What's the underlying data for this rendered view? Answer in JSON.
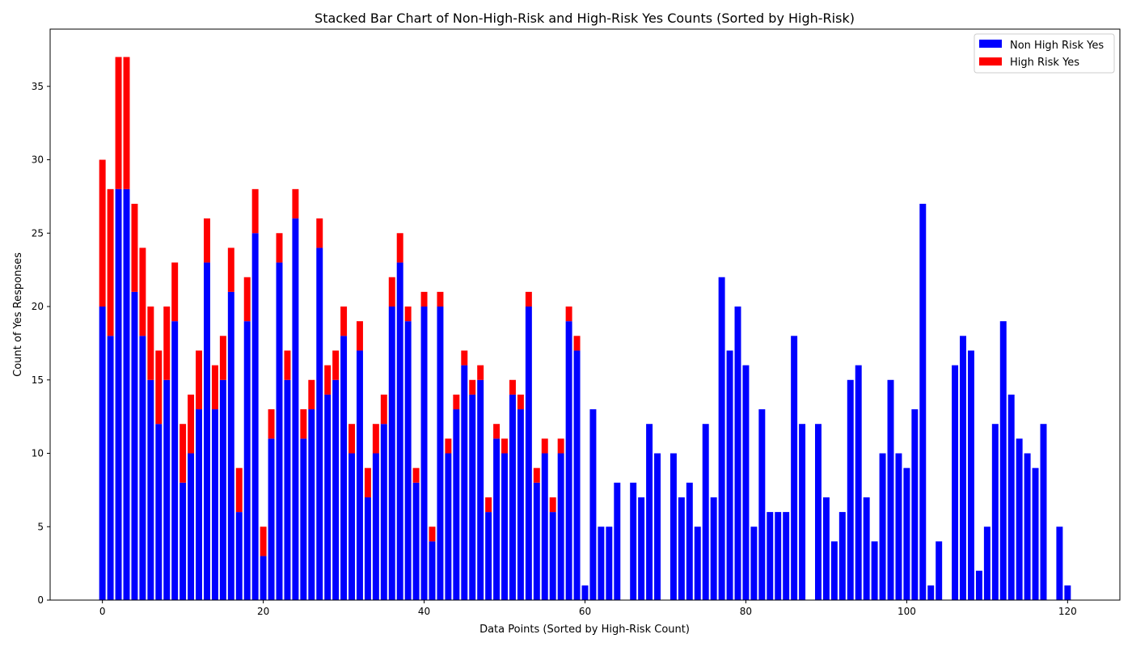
{
  "chart_data": {
    "type": "bar",
    "stacked": true,
    "title": "Stacked Bar Chart of Non-High-Risk and High-Risk Yes Counts (Sorted by High-Risk)",
    "xlabel": "Data Points (Sorted by High-Risk Count)",
    "ylabel": "Count of Yes Responses",
    "xlim": [
      -6.5,
      126.5
    ],
    "ylim": [
      0,
      38.9
    ],
    "xticks": [
      0,
      20,
      40,
      60,
      80,
      100,
      120
    ],
    "yticks": [
      0,
      5,
      10,
      15,
      20,
      25,
      30,
      35
    ],
    "grid": false,
    "legend_position": "top-right",
    "x": [
      0,
      1,
      2,
      3,
      4,
      5,
      6,
      7,
      8,
      9,
      10,
      11,
      12,
      13,
      14,
      15,
      16,
      17,
      18,
      19,
      20,
      21,
      22,
      23,
      24,
      25,
      26,
      27,
      28,
      29,
      30,
      31,
      32,
      33,
      34,
      35,
      36,
      37,
      38,
      39,
      40,
      41,
      42,
      43,
      44,
      45,
      46,
      47,
      48,
      49,
      50,
      51,
      52,
      53,
      54,
      55,
      56,
      57,
      58,
      59,
      60,
      61,
      62,
      63,
      64,
      65,
      66,
      67,
      68,
      69,
      70,
      71,
      72,
      73,
      74,
      75,
      76,
      77,
      78,
      79,
      80,
      81,
      82,
      83,
      84,
      85,
      86,
      87,
      88,
      89,
      90,
      91,
      92,
      93,
      94,
      95,
      96,
      97,
      98,
      99,
      100,
      101,
      102,
      103,
      104,
      105,
      106,
      107,
      108,
      109,
      110,
      111,
      112,
      113,
      114,
      115,
      116,
      117,
      118,
      119,
      120
    ],
    "series": [
      {
        "name": "Non High Risk Yes",
        "color": "#0000ff",
        "values": [
          20,
          18,
          28,
          28,
          21,
          18,
          15,
          12,
          15,
          19,
          8,
          10,
          13,
          23,
          13,
          15,
          21,
          6,
          19,
          25,
          3,
          11,
          23,
          15,
          26,
          11,
          13,
          24,
          14,
          15,
          18,
          10,
          17,
          7,
          10,
          12,
          20,
          23,
          19,
          8,
          20,
          4,
          20,
          10,
          13,
          16,
          14,
          15,
          6,
          11,
          10,
          14,
          13,
          20,
          8,
          10,
          6,
          10,
          19,
          17,
          1,
          13,
          5,
          5,
          8,
          0,
          8,
          7,
          12,
          10,
          0,
          10,
          7,
          8,
          5,
          12,
          7,
          22,
          17,
          20,
          16,
          5,
          13,
          6,
          6,
          6,
          18,
          12,
          0,
          12,
          7,
          4,
          6,
          15,
          16,
          7,
          4,
          10,
          15,
          10,
          9,
          13,
          27,
          1,
          4,
          0,
          16,
          18,
          17,
          2,
          5,
          12,
          19,
          14,
          11,
          10,
          9,
          12,
          0,
          5,
          1
        ]
      },
      {
        "name": "High Risk Yes",
        "color": "#ff0000",
        "values": [
          10,
          10,
          9,
          9,
          6,
          6,
          5,
          5,
          5,
          4,
          4,
          4,
          4,
          3,
          3,
          3,
          3,
          3,
          3,
          3,
          2,
          2,
          2,
          2,
          2,
          2,
          2,
          2,
          2,
          2,
          2,
          2,
          2,
          2,
          2,
          2,
          2,
          2,
          1,
          1,
          1,
          1,
          1,
          1,
          1,
          1,
          1,
          1,
          1,
          1,
          1,
          1,
          1,
          1,
          1,
          1,
          1,
          1,
          1,
          1,
          0,
          0,
          0,
          0,
          0,
          0,
          0,
          0,
          0,
          0,
          0,
          0,
          0,
          0,
          0,
          0,
          0,
          0,
          0,
          0,
          0,
          0,
          0,
          0,
          0,
          0,
          0,
          0,
          0,
          0,
          0,
          0,
          0,
          0,
          0,
          0,
          0,
          0,
          0,
          0,
          0,
          0,
          0,
          0,
          0,
          0,
          0,
          0,
          0,
          0,
          0,
          0,
          0,
          0,
          0,
          0,
          0,
          0,
          0,
          0,
          0
        ]
      }
    ]
  }
}
